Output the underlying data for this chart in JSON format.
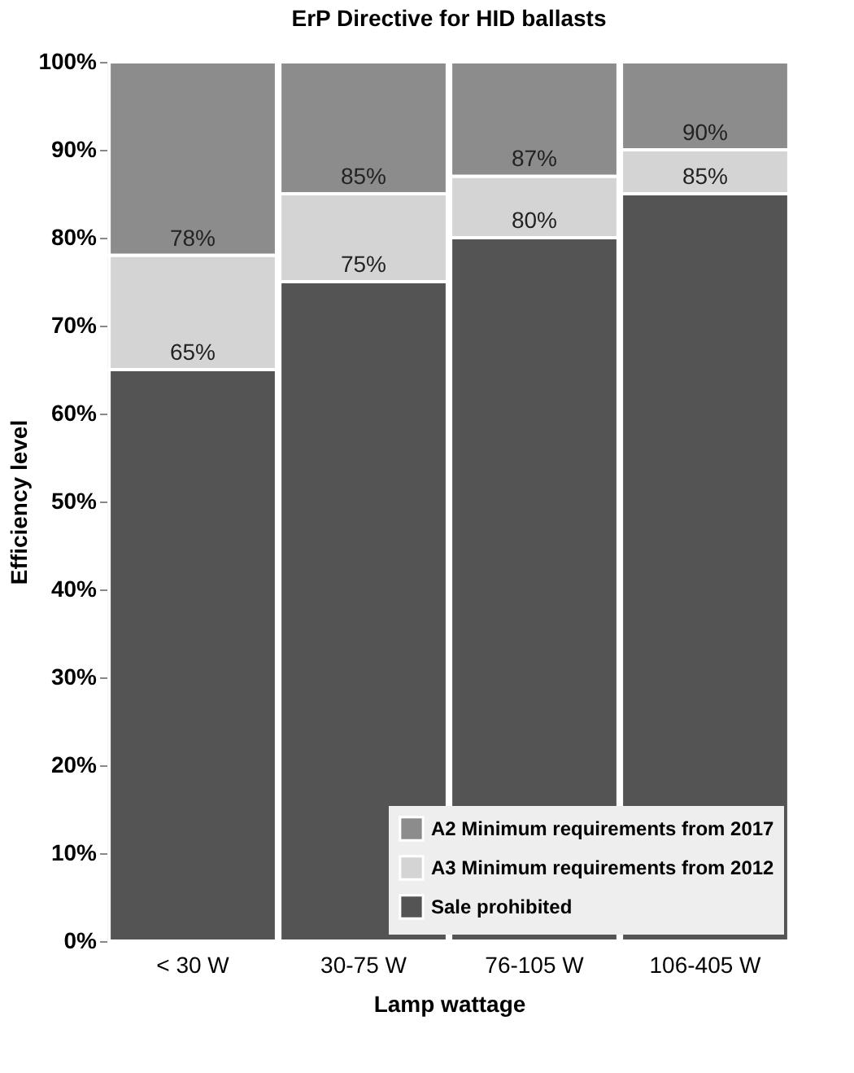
{
  "chart_data": {
    "type": "bar",
    "title": "ErP Directive for HID ballasts",
    "xlabel": "Lamp wattage",
    "ylabel": "Efficiency level",
    "categories": [
      "< 30 W",
      "30-75 W",
      "76-105 W",
      "106-405 W"
    ],
    "stacked": true,
    "series": [
      {
        "name": "Sale prohibited",
        "color": "#545454",
        "values": [
          65,
          75,
          80,
          85
        ]
      },
      {
        "name": "A3 Minimum requirements from 2012",
        "color": "#d4d4d4",
        "values": [
          13,
          10,
          7,
          5
        ]
      },
      {
        "name": "A2 Minimum requirements from 2017",
        "color": "#8c8c8c",
        "values": [
          22,
          15,
          13,
          10
        ]
      }
    ],
    "annotations": [
      {
        "text": "65%",
        "x": "< 30 W",
        "y": 65
      },
      {
        "text": "78%",
        "x": "< 30 W",
        "y": 78
      },
      {
        "text": "75%",
        "x": "30-75 W",
        "y": 75
      },
      {
        "text": "85%",
        "x": "30-75 W",
        "y": 85
      },
      {
        "text": "80%",
        "x": "76-105 W",
        "y": 80
      },
      {
        "text": "87%",
        "x": "76-105 W",
        "y": 87
      },
      {
        "text": "85%",
        "x": "106-405 W",
        "y": 85
      },
      {
        "text": "90%",
        "x": "106-405 W",
        "y": 90
      }
    ],
    "ylim": [
      0,
      100
    ],
    "yticks": [
      {
        "value": 0,
        "label": "0%"
      },
      {
        "value": 10,
        "label": "10%"
      },
      {
        "value": 20,
        "label": "20%"
      },
      {
        "value": 30,
        "label": "30%"
      },
      {
        "value": 40,
        "label": "40%"
      },
      {
        "value": 50,
        "label": "50%"
      },
      {
        "value": 60,
        "label": "60%"
      },
      {
        "value": 70,
        "label": "70%"
      },
      {
        "value": 80,
        "label": "80%"
      },
      {
        "value": 90,
        "label": "90%"
      },
      {
        "value": 100,
        "label": "100%"
      }
    ],
    "legend": "bottom right",
    "grid": false
  }
}
